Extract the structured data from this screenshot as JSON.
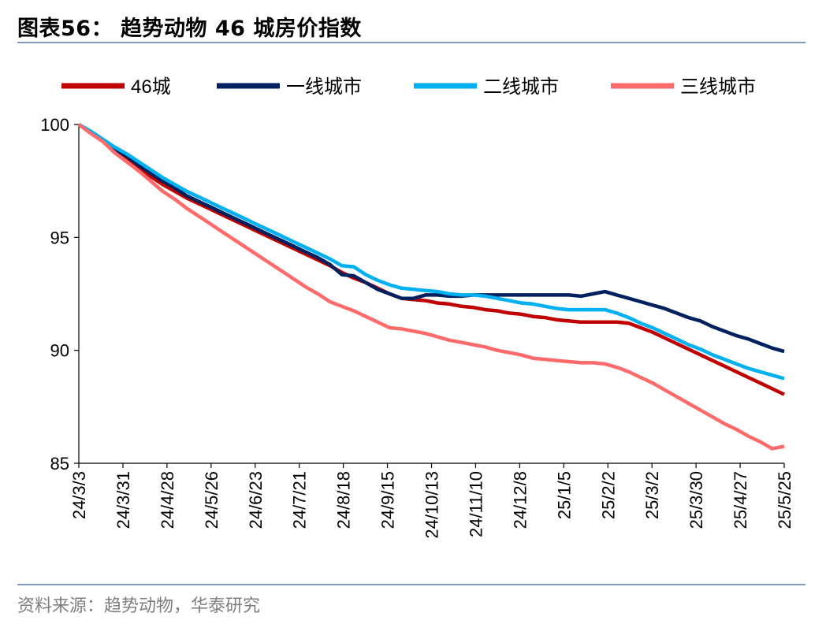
{
  "figure": {
    "title": "图表56：  趋势动物 46 城房价指数",
    "source": "资料来源：趋势动物，华泰研究"
  },
  "chart_data": {
    "type": "line",
    "ylim": [
      85,
      100
    ],
    "yticks": [
      85,
      90,
      95,
      100
    ],
    "xlabels": [
      "24/3/3",
      "24/3/31",
      "24/4/28",
      "24/5/26",
      "24/6/23",
      "24/7/21",
      "24/8/18",
      "24/9/15",
      "24/10/13",
      "24/11/10",
      "24/12/8",
      "25/1/5",
      "25/2/2",
      "25/3/2",
      "25/3/30",
      "25/4/27",
      "25/5/25"
    ],
    "legend_position": "top",
    "grid": false,
    "series": [
      {
        "name": "46城",
        "color": "#c00000",
        "values": [
          100,
          99.65,
          99.3,
          98.8,
          98.5,
          98.1,
          97.7,
          97.35,
          97.05,
          96.75,
          96.5,
          96.25,
          96.0,
          95.75,
          95.5,
          95.25,
          95.0,
          94.75,
          94.5,
          94.25,
          94.0,
          93.75,
          93.45,
          93.2,
          93.0,
          92.75,
          92.5,
          92.3,
          92.25,
          92.2,
          92.1,
          92.05,
          91.95,
          91.9,
          91.8,
          91.75,
          91.65,
          91.6,
          91.5,
          91.45,
          91.35,
          91.3,
          91.25,
          91.25,
          91.25,
          91.25,
          91.2,
          91.0,
          90.8,
          90.55,
          90.3,
          90.05,
          89.8,
          89.55,
          89.3,
          89.05,
          88.8,
          88.55,
          88.3,
          88.05
        ]
      },
      {
        "name": "一线城市",
        "color": "#002060",
        "values": [
          100,
          99.65,
          99.3,
          98.9,
          98.6,
          98.2,
          97.85,
          97.5,
          97.2,
          96.85,
          96.6,
          96.35,
          96.1,
          95.85,
          95.6,
          95.35,
          95.1,
          94.85,
          94.6,
          94.35,
          94.1,
          93.8,
          93.35,
          93.3,
          93.0,
          92.7,
          92.5,
          92.3,
          92.3,
          92.45,
          92.45,
          92.4,
          92.4,
          92.45,
          92.45,
          92.45,
          92.45,
          92.45,
          92.45,
          92.45,
          92.45,
          92.45,
          92.4,
          92.5,
          92.6,
          92.45,
          92.3,
          92.15,
          92.0,
          91.85,
          91.65,
          91.45,
          91.3,
          91.05,
          90.85,
          90.65,
          90.5,
          90.3,
          90.1,
          89.95
        ]
      },
      {
        "name": "二线城市",
        "color": "#00b0f0",
        "values": [
          100,
          99.7,
          99.35,
          99.0,
          98.7,
          98.35,
          98.0,
          97.65,
          97.35,
          97.05,
          96.8,
          96.55,
          96.3,
          96.05,
          95.8,
          95.55,
          95.3,
          95.05,
          94.8,
          94.55,
          94.3,
          94.05,
          93.75,
          93.7,
          93.35,
          93.1,
          92.9,
          92.75,
          92.7,
          92.65,
          92.6,
          92.5,
          92.45,
          92.45,
          92.4,
          92.3,
          92.2,
          92.1,
          92.05,
          91.95,
          91.85,
          91.8,
          91.8,
          91.8,
          91.8,
          91.65,
          91.45,
          91.2,
          91.0,
          90.75,
          90.5,
          90.25,
          90.05,
          89.8,
          89.6,
          89.4,
          89.2,
          89.05,
          88.9,
          88.75
        ]
      },
      {
        "name": "三线城市",
        "color": "#ff6b6b",
        "values": [
          100,
          99.6,
          99.25,
          98.75,
          98.35,
          97.95,
          97.5,
          97.05,
          96.7,
          96.3,
          95.95,
          95.6,
          95.25,
          94.9,
          94.55,
          94.2,
          93.85,
          93.5,
          93.15,
          92.8,
          92.5,
          92.15,
          91.95,
          91.75,
          91.5,
          91.25,
          91.0,
          90.95,
          90.85,
          90.75,
          90.6,
          90.45,
          90.35,
          90.25,
          90.15,
          90.0,
          89.9,
          89.8,
          89.65,
          89.6,
          89.55,
          89.5,
          89.45,
          89.45,
          89.4,
          89.25,
          89.05,
          88.8,
          88.55,
          88.25,
          87.95,
          87.65,
          87.35,
          87.05,
          86.75,
          86.5,
          86.2,
          85.95,
          85.65,
          85.75
        ]
      }
    ]
  }
}
